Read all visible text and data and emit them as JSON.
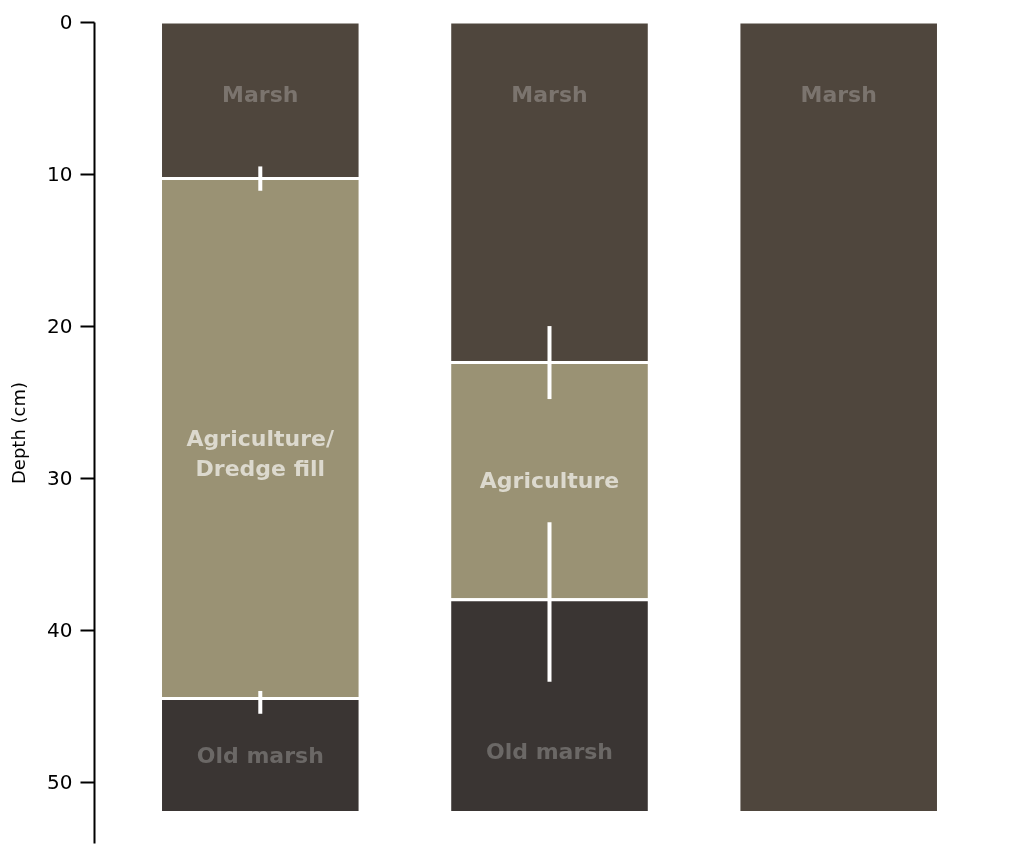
{
  "chart_data": {
    "type": "bar",
    "stacked": true,
    "ylabel": "Depth (cm)",
    "categories": [
      null,
      null,
      null
    ],
    "ylim": [
      54,
      0
    ],
    "yticks": [
      0,
      10,
      20,
      30,
      40,
      50
    ],
    "tick_labels": "y",
    "grid": false,
    "series": [
      {
        "color": "#4f463d",
        "values": [
          10.3,
          22.4,
          52
        ],
        "value_labels": [
          "Marsh",
          "Marsh",
          "Marsh"
        ],
        "errors": [
          [
            9.5,
            11.1
          ],
          [
            20.0,
            24.8
          ],
          null
        ]
      },
      {
        "color": "#9a9274",
        "values": [
          34.2,
          15.6,
          null
        ],
        "value_labels": [
          "Agriculture/\nDredge fill",
          "Agriculture",
          null
        ],
        "errors": [
          [
            44.0,
            45.5
          ],
          [
            32.9,
            43.4
          ],
          null
        ]
      },
      {
        "color": "#3a3533",
        "values": [
          7.5,
          14,
          null
        ],
        "value_labels": [
          "Old marsh",
          "Old marsh",
          null
        ]
      }
    ]
  }
}
